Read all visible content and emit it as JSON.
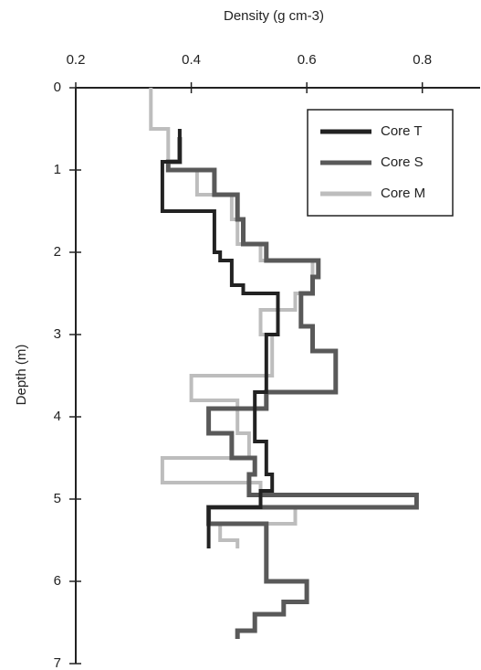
{
  "chart_data": {
    "type": "step-profile",
    "x_label": "Density (g cm-3)",
    "y_label": "Depth (m)",
    "xlim": [
      0.2,
      0.9
    ],
    "xticks": [
      {
        "value": 0.2,
        "label": "0.2"
      },
      {
        "value": 0.4,
        "label": "0.4"
      },
      {
        "value": 0.6,
        "label": "0.6"
      },
      {
        "value": 0.8,
        "label": "0.8"
      }
    ],
    "ylim": [
      0,
      7
    ],
    "yticks": [
      0,
      1,
      2,
      3,
      4,
      5,
      6,
      7
    ],
    "y_inverted": true,
    "legend": "top-right",
    "series": [
      {
        "name": "Core T",
        "color": "#222222",
        "values": [
          0.38,
          0.38,
          0.35,
          0.35,
          0.44,
          0.44,
          0.45,
          0.45,
          0.47,
          0.47,
          0.49,
          0.49,
          0.55,
          0.55,
          0.53,
          0.53,
          0.51,
          0.51,
          0.53,
          0.53,
          0.54,
          0.54,
          0.52,
          0.52,
          0.43,
          0.43
        ],
        "depth": [
          0.5,
          0.9,
          0.9,
          1.5,
          1.5,
          2.0,
          2.0,
          2.1,
          2.1,
          2.4,
          2.4,
          2.5,
          2.5,
          3.0,
          3.0,
          3.7,
          3.7,
          4.3,
          4.3,
          4.7,
          4.7,
          4.9,
          4.9,
          5.1,
          5.1,
          5.6
        ]
      },
      {
        "name": "Core S",
        "color": "#595959",
        "values": [
          0.38,
          0.38,
          0.36,
          0.36,
          0.44,
          0.44,
          0.48,
          0.48,
          0.49,
          0.49,
          0.53,
          0.53,
          0.62,
          0.62,
          0.61,
          0.61,
          0.59,
          0.59,
          0.61,
          0.61,
          0.65,
          0.65,
          0.53,
          0.53,
          0.43,
          0.43,
          0.47,
          0.47,
          0.51,
          0.51,
          0.5,
          0.5,
          0.79,
          0.79,
          0.43,
          0.43,
          0.53,
          0.53,
          0.6,
          0.6,
          0.56,
          0.56,
          0.51,
          0.51,
          0.48,
          0.48
        ],
        "depth": [
          0.6,
          0.9,
          0.9,
          1.0,
          1.0,
          1.3,
          1.3,
          1.6,
          1.6,
          1.9,
          1.9,
          2.1,
          2.1,
          2.3,
          2.3,
          2.5,
          2.5,
          2.9,
          2.9,
          3.2,
          3.2,
          3.7,
          3.7,
          3.9,
          3.9,
          4.2,
          4.2,
          4.5,
          4.5,
          4.7,
          4.7,
          4.95,
          4.95,
          5.1,
          5.1,
          5.3,
          5.3,
          6.0,
          6.0,
          6.25,
          6.25,
          6.4,
          6.4,
          6.6,
          6.6,
          6.7
        ]
      },
      {
        "name": "Core M",
        "color": "#bdbdbd",
        "values": [
          0.33,
          0.33,
          0.36,
          0.36,
          0.41,
          0.41,
          0.47,
          0.47,
          0.48,
          0.48,
          0.52,
          0.52,
          0.61,
          0.61,
          0.58,
          0.58,
          0.52,
          0.52,
          0.54,
          0.54,
          0.4,
          0.4,
          0.48,
          0.48,
          0.5,
          0.5,
          0.35,
          0.35,
          0.52,
          0.52,
          0.58,
          0.58,
          0.45,
          0.45,
          0.48,
          0.48
        ],
        "depth": [
          0.0,
          0.5,
          0.5,
          1.0,
          1.0,
          1.3,
          1.3,
          1.6,
          1.6,
          1.9,
          1.9,
          2.1,
          2.1,
          2.5,
          2.5,
          2.7,
          2.7,
          3.0,
          3.0,
          3.5,
          3.5,
          3.8,
          3.8,
          4.2,
          4.2,
          4.5,
          4.5,
          4.8,
          4.8,
          5.1,
          5.1,
          5.3,
          5.3,
          5.5,
          5.5,
          5.6
        ]
      }
    ]
  }
}
